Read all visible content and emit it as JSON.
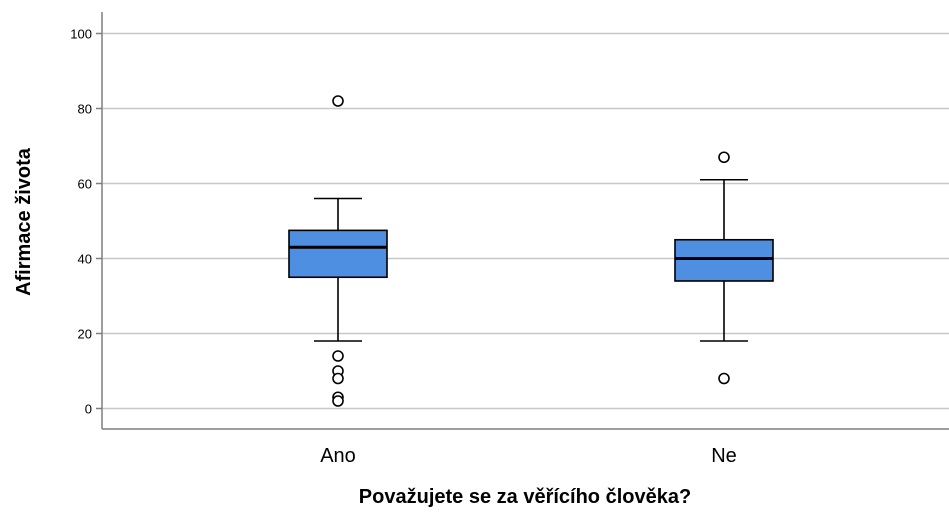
{
  "chart_data": {
    "type": "box",
    "title": "",
    "xlabel": "Považujete se za věřícího člověka?",
    "ylabel": "Afirmace života",
    "ylim": [
      -5,
      104
    ],
    "yticks": [
      0,
      20,
      40,
      60,
      80,
      100
    ],
    "grid": true,
    "categories": [
      "Ano",
      "Ne"
    ],
    "boxes": [
      {
        "category": "Ano",
        "whisker_low": 18,
        "q1": 35,
        "median": 43,
        "q3": 47.5,
        "whisker_high": 56,
        "outliers": [
          82,
          14,
          10,
          8,
          3,
          2
        ]
      },
      {
        "category": "Ne",
        "whisker_low": 18,
        "q1": 34,
        "median": 40,
        "q3": 45,
        "whisker_high": 61,
        "outliers": [
          67,
          8
        ]
      }
    ],
    "colors": {
      "box_fill": "#4f8fe2",
      "stroke": "#000000",
      "grid": "#c8c8c8",
      "axis": "#7f7f7f"
    }
  }
}
